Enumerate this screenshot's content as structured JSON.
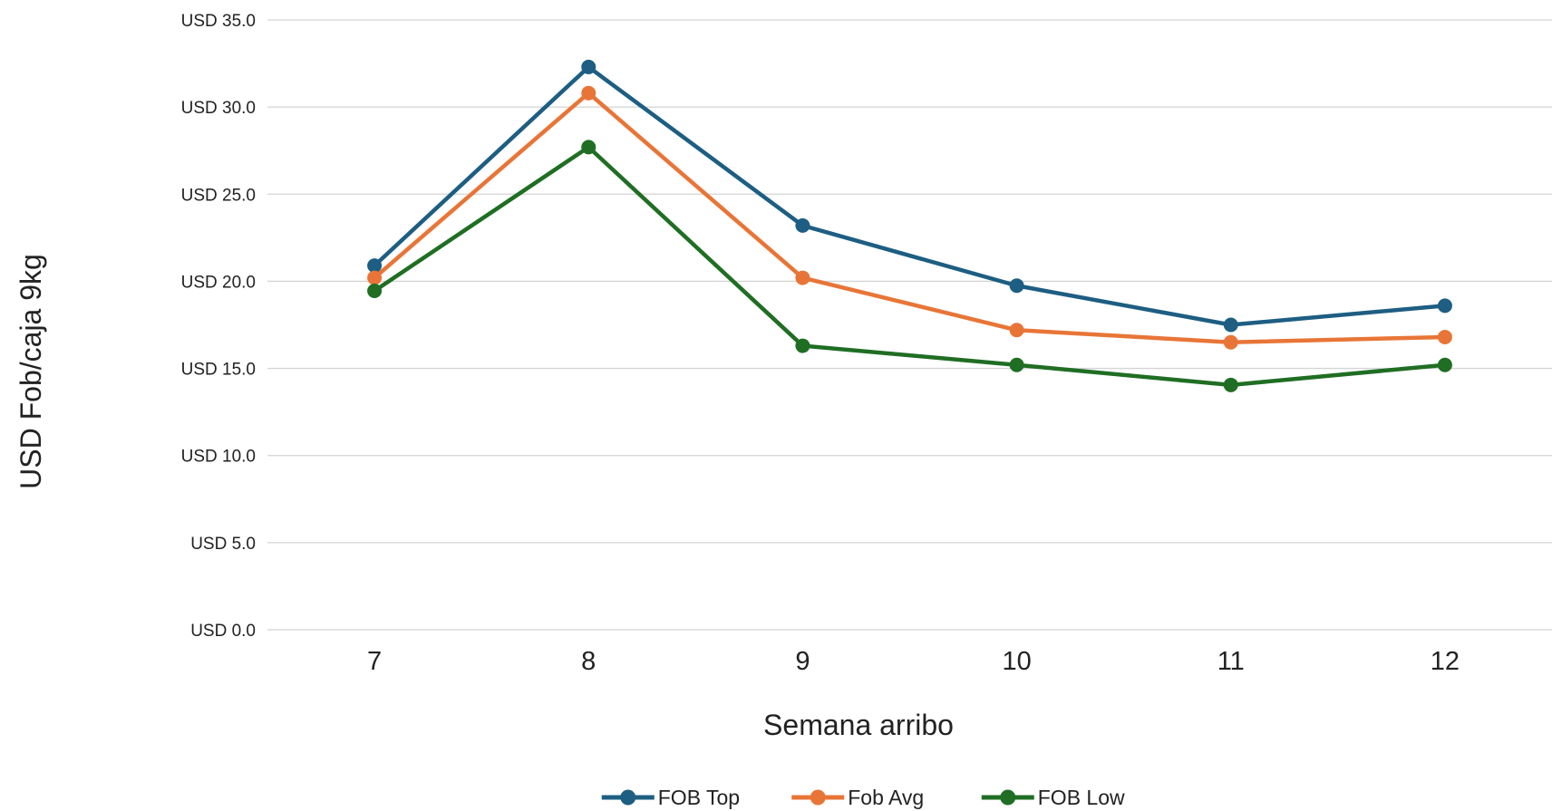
{
  "chart_data": {
    "type": "line",
    "title": "",
    "xlabel": "Semana arribo",
    "ylabel": "USD Fob/caja 9kg",
    "categories": [
      "7",
      "8",
      "9",
      "10",
      "11",
      "12"
    ],
    "ylim": [
      0,
      35
    ],
    "ytick_values": [
      0,
      5,
      10,
      15,
      20,
      25,
      30,
      35
    ],
    "ytick_labels": [
      "USD 0.0",
      "USD 5.0",
      "USD 10.0",
      "USD 15.0",
      "USD 20.0",
      "USD 25.0",
      "USD 30.0",
      "USD 35.0"
    ],
    "grid": true,
    "legend_position": "bottom",
    "series": [
      {
        "name": "FOB Top",
        "color": "#1d5e82",
        "values": [
          20.9,
          32.3,
          23.2,
          19.75,
          17.5,
          18.6
        ]
      },
      {
        "name": "Fob Avg",
        "color": "#e87537",
        "values": [
          20.2,
          30.8,
          20.2,
          17.2,
          16.5,
          16.8
        ]
      },
      {
        "name": "FOB Low",
        "color": "#1f6e23",
        "values": [
          19.45,
          27.7,
          16.3,
          15.2,
          14.05,
          15.2
        ]
      }
    ]
  }
}
